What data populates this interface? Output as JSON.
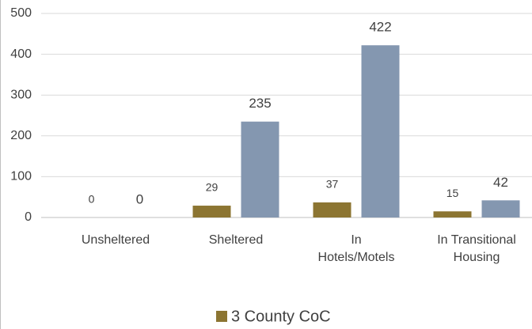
{
  "chart_data": {
    "type": "bar",
    "categories": [
      "Unsheltered",
      "Sheltered",
      "In Hotels/Motels",
      "In Transitional Housing"
    ],
    "series": [
      {
        "name": "3 County CoC",
        "color": "#8c7532",
        "values": [
          0,
          29,
          37,
          15
        ]
      },
      {
        "color": "#8497b0",
        "values": [
          0,
          235,
          422,
          42
        ]
      }
    ],
    "ylim": [
      0,
      500
    ],
    "yticks": [
      0,
      100,
      200,
      300,
      400,
      500
    ],
    "grid": true,
    "legend": "bottom"
  }
}
